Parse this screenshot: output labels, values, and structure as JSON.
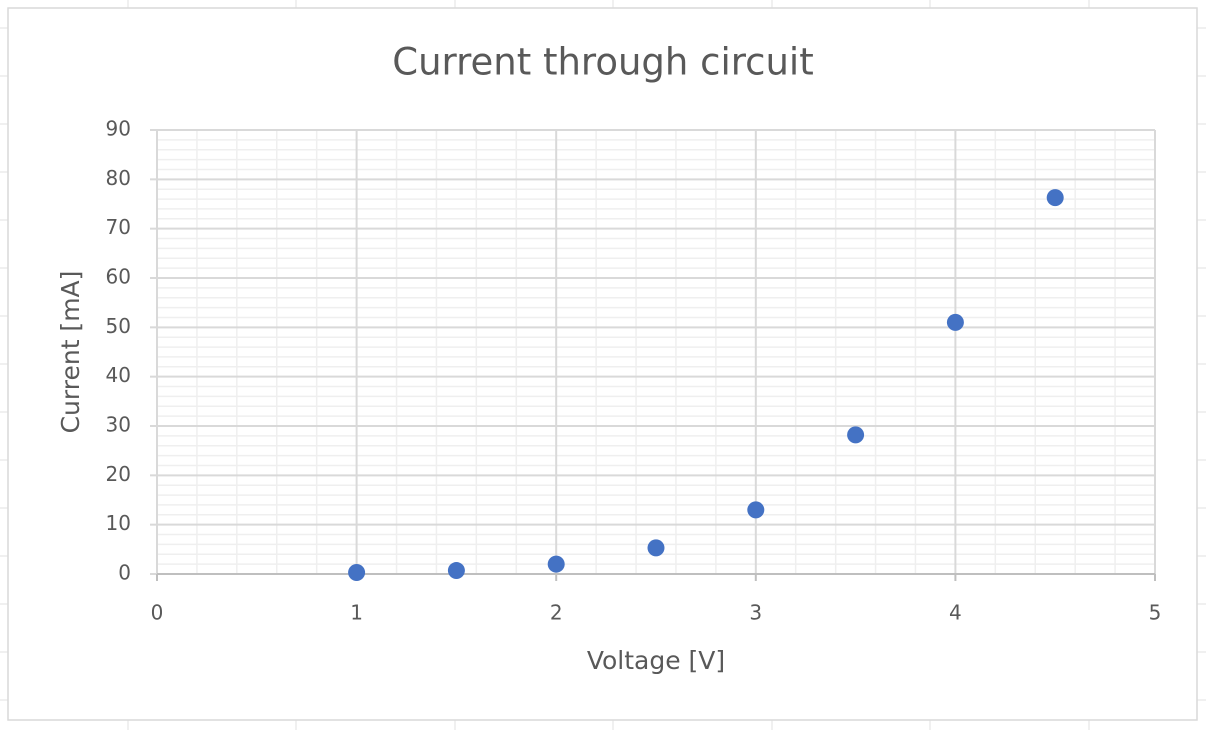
{
  "chart_data": {
    "type": "scatter",
    "title": "Current through circuit",
    "x_label": "Voltage [V]",
    "y_label": "Current [mA]",
    "series": [
      {
        "name": "Current",
        "color": "#4472c4",
        "x": [
          1,
          1.5,
          2,
          2.5,
          3,
          3.5,
          4,
          4.5
        ],
        "values": [
          0.3,
          0.7,
          2,
          5.3,
          13,
          28.2,
          51,
          76.3
        ]
      }
    ],
    "xlim": [
      0,
      5
    ],
    "xticks": [
      0,
      1,
      2,
      3,
      4,
      5
    ],
    "ylim": [
      0,
      90
    ],
    "yticks": [
      0,
      10,
      20,
      30,
      40,
      50,
      60,
      70,
      80,
      90
    ],
    "grid": true,
    "minor_grid": true
  }
}
